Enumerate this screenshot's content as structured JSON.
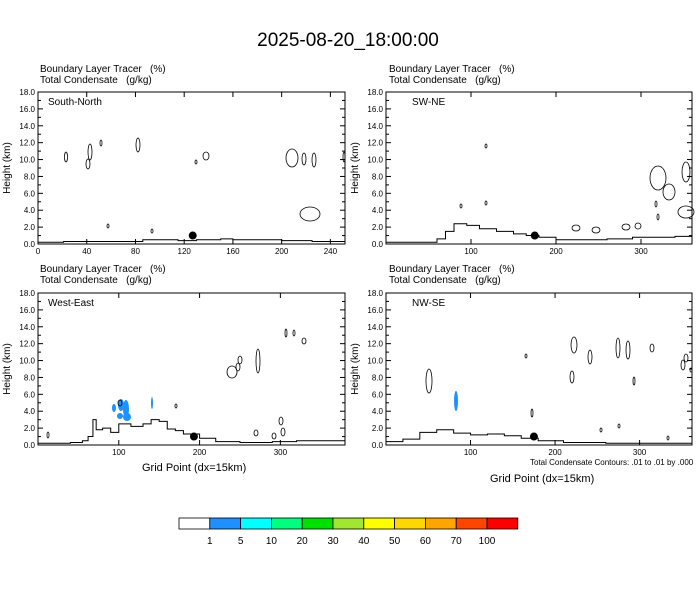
{
  "title": "2025-08-20_18:00:00",
  "header": {
    "line1": "Boundary Layer Tracer   (%)",
    "line2": "Total Condensate   (g/kg)"
  },
  "colorbar": {
    "labels": [
      "1",
      "5",
      "10",
      "20",
      "30",
      "40",
      "50",
      "60",
      "70",
      "100"
    ],
    "colors": [
      "#ffffff",
      "#1e90ff",
      "#00ffff",
      "#00ff7f",
      "#00e000",
      "#a0e632",
      "#ffff00",
      "#ffd700",
      "#ffa500",
      "#ff4500",
      "#ff0000"
    ]
  },
  "footnote": "Total Condensate Contours: .01 to .01 by .000",
  "xlabel": "Grid Point (dx=15km)",
  "chart_data": [
    {
      "type": "line",
      "panel_label": "South-North",
      "ylabel": "Height (km)",
      "xlim": [
        0,
        252
      ],
      "xticks": [
        0,
        40,
        80,
        120,
        160,
        200,
        240
      ],
      "ylim": [
        0,
        18
      ],
      "yticks": [
        "0.0",
        "2.0",
        "4.0",
        "6.0",
        "8.0",
        "10.0",
        "12.0",
        "14.0",
        "16.0",
        "18.0"
      ],
      "marker": [
        127,
        1.0
      ],
      "terrain": [
        [
          0,
          0.2
        ],
        [
          20,
          0.2
        ],
        [
          21,
          0.3
        ],
        [
          40,
          0.3
        ],
        [
          41,
          0.3
        ],
        [
          60,
          0.3
        ],
        [
          80,
          0.3
        ],
        [
          86,
          0.5
        ],
        [
          100,
          0.5
        ],
        [
          115,
          0.4
        ],
        [
          130,
          0.5
        ],
        [
          150,
          0.6
        ],
        [
          160,
          0.5
        ],
        [
          175,
          0.5
        ],
        [
          200,
          0.4
        ],
        [
          225,
          0.3
        ],
        [
          252,
          0.3
        ]
      ]
    },
    {
      "type": "line",
      "panel_label": "SW-NE",
      "ylabel": "Height (km)",
      "xlim": [
        0,
        360
      ],
      "xticks": [
        100,
        200,
        300
      ],
      "ylim": [
        0,
        18
      ],
      "yticks": [
        "0.0",
        "2.0",
        "4.0",
        "6.0",
        "8.0",
        "10.0",
        "12.0",
        "14.0",
        "16.0",
        "18.0"
      ],
      "marker": [
        175,
        1.0
      ],
      "terrain": [
        [
          0,
          0.2
        ],
        [
          50,
          0.2
        ],
        [
          60,
          0.6
        ],
        [
          70,
          1.5
        ],
        [
          80,
          2.4
        ],
        [
          95,
          2.2
        ],
        [
          110,
          1.8
        ],
        [
          130,
          1.5
        ],
        [
          150,
          1.2
        ],
        [
          165,
          1.0
        ],
        [
          180,
          0.8
        ],
        [
          200,
          0.5
        ],
        [
          230,
          0.5
        ],
        [
          260,
          0.6
        ],
        [
          290,
          0.8
        ],
        [
          320,
          0.8
        ],
        [
          340,
          0.9
        ],
        [
          360,
          1.0
        ]
      ]
    },
    {
      "type": "line",
      "panel_label": "West-East",
      "ylabel": "Height (km)",
      "xlim": [
        0,
        380
      ],
      "xticks": [
        100,
        200,
        300
      ],
      "ylim": [
        0,
        18
      ],
      "yticks": [
        "0.0",
        "2.0",
        "4.0",
        "6.0",
        "8.0",
        "10.0",
        "12.0",
        "14.0",
        "16.0",
        "18.0"
      ],
      "marker": [
        193,
        1.0
      ],
      "terrain": [
        [
          0,
          0.2
        ],
        [
          40,
          0.3
        ],
        [
          55,
          0.5
        ],
        [
          62,
          1.0
        ],
        [
          68,
          3.0
        ],
        [
          72,
          1.8
        ],
        [
          80,
          2.0
        ],
        [
          90,
          1.5
        ],
        [
          100,
          2.5
        ],
        [
          115,
          2.2
        ],
        [
          130,
          2.5
        ],
        [
          140,
          3.0
        ],
        [
          150,
          2.8
        ],
        [
          160,
          1.9
        ],
        [
          170,
          1.7
        ],
        [
          180,
          1.3
        ],
        [
          200,
          0.8
        ],
        [
          220,
          0.4
        ],
        [
          250,
          0.3
        ],
        [
          290,
          0.4
        ],
        [
          320,
          0.5
        ],
        [
          380,
          0.5
        ]
      ]
    },
    {
      "type": "line",
      "panel_label": "NW-SE",
      "ylabel": "Height (km)",
      "xlim": [
        0,
        362
      ],
      "xticks": [
        100,
        200,
        300
      ],
      "ylim": [
        0,
        18
      ],
      "yticks": [
        "0.0",
        "2.0",
        "4.0",
        "6.0",
        "8.0",
        "10.0",
        "12.0",
        "14.0",
        "16.0",
        "18.0"
      ],
      "marker": [
        175,
        1.0
      ],
      "terrain": [
        [
          0,
          0.4
        ],
        [
          20,
          0.7
        ],
        [
          40,
          1.5
        ],
        [
          60,
          1.8
        ],
        [
          80,
          1.4
        ],
        [
          100,
          1.2
        ],
        [
          120,
          1.3
        ],
        [
          140,
          1.1
        ],
        [
          160,
          0.8
        ],
        [
          180,
          0.5
        ],
        [
          210,
          0.3
        ],
        [
          260,
          0.2
        ],
        [
          362,
          0.2
        ]
      ]
    }
  ]
}
